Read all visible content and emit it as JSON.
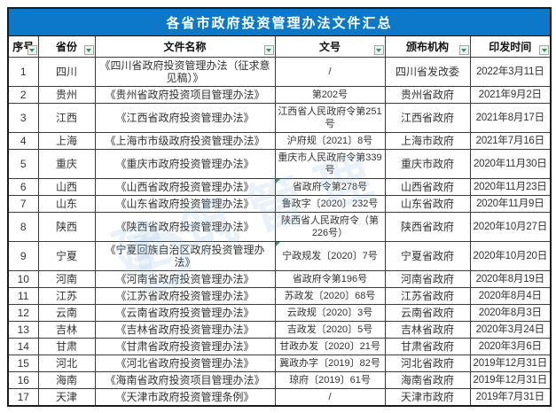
{
  "title": "各省市政府投资管理办法文件汇总",
  "columns": [
    {
      "label": "序号"
    },
    {
      "label": "省份"
    },
    {
      "label": "文件名称"
    },
    {
      "label": "文号"
    },
    {
      "label": "颁布机构"
    },
    {
      "label": "印发时间"
    }
  ],
  "rows": [
    {
      "no": "1",
      "province": "四川",
      "doc_name": "《四川省政府投资管理办法（征求意见稿）》",
      "doc_no": "/",
      "agency": "四川省发改委",
      "date": "2022年3月11日"
    },
    {
      "no": "2",
      "province": "贵州",
      "doc_name": "《贵州省政府投资项目管理办法》",
      "doc_no": "第202号",
      "agency": "贵州省政府",
      "date": "2021年9月2日"
    },
    {
      "no": "3",
      "province": "江西",
      "doc_name": "《江西省政府投资管理办法》",
      "doc_no": "江西省人民政府令第251号",
      "agency": "江西省政府",
      "date": "2021年8月17日"
    },
    {
      "no": "4",
      "province": "上海",
      "doc_name": "《上海市市级政府投资管理办法》",
      "doc_no": "沪府规〔2021〕8号",
      "agency": "上海市政府",
      "date": "2021年7月16日"
    },
    {
      "no": "5",
      "province": "重庆",
      "doc_name": "《重庆市政府投资管理办法》",
      "doc_no": "重庆市人民政府令第339 号",
      "agency": "重庆市政府",
      "date": "2020年11月30日"
    },
    {
      "no": "6",
      "province": "山西",
      "doc_name": "《山西省政府投资管理办法》",
      "doc_no": "省政府令第278号",
      "agency": "山西省政府",
      "date": "2020年11月23日",
      "corner_mark": true
    },
    {
      "no": "7",
      "province": "山东",
      "doc_name": "《山东省政府投资管理办法》",
      "doc_no": "鲁政字〔2020〕232号",
      "agency": "山东省政府",
      "date": "2020年11月9日"
    },
    {
      "no": "8",
      "province": "陕西",
      "doc_name": "《陕西省政府投资管理办法》",
      "doc_no": "陕西省人民政府令（第226号）",
      "agency": "陕西省政府",
      "date": "2020年10月27日"
    },
    {
      "no": "9",
      "province": "宁夏",
      "doc_name": "《宁夏回族自治区政府投资管理办法》",
      "doc_no": "宁政规发〔2020〕7号",
      "agency": "宁夏省政府",
      "date": "2020年10月20日",
      "corner_mark": true
    },
    {
      "no": "10",
      "province": "河南",
      "doc_name": "《河南省政府投资管理办法》",
      "doc_no": "省政府令第196号",
      "agency": "河南省政府",
      "date": "2020年8月19日"
    },
    {
      "no": "11",
      "province": "江苏",
      "doc_name": "《江苏省政府投资管理办法》",
      "doc_no": "苏政发〔2020〕68号",
      "agency": "江苏省政府",
      "date": "2020年8月4日"
    },
    {
      "no": "12",
      "province": "云南",
      "doc_name": "《云南省政府投资管理办法》",
      "doc_no": "云政规〔2020〕3号",
      "agency": "云南省政府",
      "date": "2020年8月3日"
    },
    {
      "no": "13",
      "province": "吉林",
      "doc_name": "《吉林省政府投资管理办法》",
      "doc_no": "吉政发〔2020〕5号",
      "agency": "吉林省政府",
      "date": "2020年3月24日"
    },
    {
      "no": "14",
      "province": "甘肃",
      "doc_name": "《甘肃省政府投资管理办法》",
      "doc_no": "甘政办发〔2020〕21号",
      "agency": "甘肃省政府",
      "date": "2020年3月6日"
    },
    {
      "no": "15",
      "province": "河北",
      "doc_name": "《河北省政府投资管理办法》",
      "doc_no": "冀政办字〔2019〕82号",
      "agency": "河北省政府",
      "date": "2019年12月31日"
    },
    {
      "no": "16",
      "province": "海南",
      "doc_name": "《海南省政府投资项目管理办法》",
      "doc_no": "琼府〔2019〕61号",
      "agency": "海南省政府",
      "date": "2019年12月31日"
    },
    {
      "no": "17",
      "province": "天津",
      "doc_name": "《天津市政府投资管理条例》",
      "doc_no": "/",
      "agency": "天津市政府",
      "date": "2019年7月31日"
    }
  ],
  "watermark": {
    "text": "建筑管理",
    "logo": "D"
  },
  "colors": {
    "title_bg": "#0d78c8",
    "title_text": "#ffffff",
    "grid_border": "#3c3c3c",
    "body_text": "#333333",
    "filter_arrow_green": "#21a15e",
    "corner_mark_green": "#21a15e",
    "watermark_blue": "#7fb4dd"
  }
}
